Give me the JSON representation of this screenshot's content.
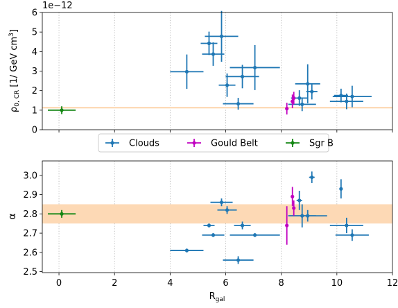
{
  "chart_data": [
    {
      "type": "scatter",
      "offset_text": "1e−12",
      "ylabel_main": "ρ",
      "ylabel_sub": "0, CR",
      "ylabel_unit": " [1/ GeV cm",
      "ylabel_sup": "3",
      "ylabel_close": "]",
      "xlim": [
        -0.6,
        12
      ],
      "ylim": [
        0,
        6
      ],
      "x_ticks": [
        0,
        2,
        4,
        6,
        8,
        10,
        12
      ],
      "y_ticks": [
        0,
        1,
        2,
        3,
        4,
        5,
        6
      ],
      "y_tick_labels": [
        "0",
        "1",
        "2",
        "3",
        "4",
        "5",
        "6"
      ],
      "vlines": [
        0,
        2,
        4,
        6,
        8,
        10
      ],
      "band": {
        "center": 1.13,
        "low": 1.09,
        "high": 1.17,
        "color": "#fdd9b5"
      },
      "series": [
        {
          "name": "Clouds",
          "color": "#1f77b4",
          "points": [
            {
              "x": 4.6,
              "y": 2.97,
              "xerr": 0.6,
              "yerr": 0.88
            },
            {
              "x": 5.4,
              "y": 4.42,
              "xerr": 0.3,
              "yerr": 0.6
            },
            {
              "x": 5.55,
              "y": 3.87,
              "xerr": 0.4,
              "yerr": 0.6
            },
            {
              "x": 5.85,
              "y": 4.78,
              "xerr": 0.6,
              "yerr": 1.3
            },
            {
              "x": 6.05,
              "y": 2.28,
              "xerr": 0.3,
              "yerr": 0.6
            },
            {
              "x": 6.45,
              "y": 1.33,
              "xerr": 0.55,
              "yerr": 0.3
            },
            {
              "x": 6.6,
              "y": 2.72,
              "xerr": 0.6,
              "yerr": 0.6
            },
            {
              "x": 7.05,
              "y": 3.18,
              "xerr": 0.9,
              "yerr": 1.15
            },
            {
              "x": 8.65,
              "y": 1.62,
              "xerr": 0.3,
              "yerr": 0.4
            },
            {
              "x": 8.75,
              "y": 1.3,
              "xerr": 0.5,
              "yerr": 0.35
            },
            {
              "x": 8.95,
              "y": 2.35,
              "xerr": 0.45,
              "yerr": 1.0
            },
            {
              "x": 9.1,
              "y": 1.95,
              "xerr": 0.2,
              "yerr": 0.4
            },
            {
              "x": 10.15,
              "y": 1.75,
              "xerr": 0.25,
              "yerr": 0.35
            },
            {
              "x": 10.35,
              "y": 1.45,
              "xerr": 0.6,
              "yerr": 0.4
            },
            {
              "x": 10.55,
              "y": 1.7,
              "xerr": 0.7,
              "yerr": 0.55
            }
          ]
        },
        {
          "name": "Gould Belt",
          "color": "#c000c0",
          "points": [
            {
              "x": 8.2,
              "y": 1.08,
              "xerr": 0.0,
              "yerr": 0.3
            },
            {
              "x": 8.4,
              "y": 1.45,
              "xerr": 0.0,
              "yerr": 0.35
            },
            {
              "x": 8.45,
              "y": 1.62,
              "xerr": 0.0,
              "yerr": 0.32
            }
          ]
        },
        {
          "name": "Sgr B",
          "color": "#138613",
          "points": [
            {
              "x": 0.1,
              "y": 1.0,
              "xerr": 0.5,
              "yerr": 0.2
            }
          ]
        }
      ]
    },
    {
      "type": "scatter",
      "ylabel": "α",
      "xlabel_main": "R",
      "xlabel_sub": "gal",
      "xlim": [
        -0.6,
        12
      ],
      "ylim": [
        2.495,
        3.075
      ],
      "x_ticks": [
        0,
        2,
        4,
        6,
        8,
        10,
        12
      ],
      "x_tick_labels": [
        "0",
        "2",
        "4",
        "6",
        "8",
        "10",
        "12"
      ],
      "y_ticks": [
        2.5,
        2.6,
        2.7,
        2.8,
        2.9,
        3.0
      ],
      "y_tick_labels": [
        "2.5",
        "2.6",
        "2.7",
        "2.8",
        "2.9",
        "3.0"
      ],
      "vlines": [
        0,
        2,
        4,
        6,
        8,
        10
      ],
      "band": {
        "center": 2.8,
        "low": 2.75,
        "high": 2.85,
        "color": "#fdd9b5"
      },
      "series": [
        {
          "name": "Clouds",
          "color": "#1f77b4",
          "points": [
            {
              "x": 4.6,
              "y": 2.61,
              "xerr": 0.6,
              "yerr": 0.01
            },
            {
              "x": 5.4,
              "y": 2.74,
              "xerr": 0.2,
              "yerr": 0.01
            },
            {
              "x": 5.55,
              "y": 2.69,
              "xerr": 0.4,
              "yerr": 0.01
            },
            {
              "x": 5.85,
              "y": 2.86,
              "xerr": 0.4,
              "yerr": 0.02
            },
            {
              "x": 6.05,
              "y": 2.82,
              "xerr": 0.35,
              "yerr": 0.02
            },
            {
              "x": 6.45,
              "y": 2.56,
              "xerr": 0.55,
              "yerr": 0.02
            },
            {
              "x": 6.6,
              "y": 2.74,
              "xerr": 0.3,
              "yerr": 0.02
            },
            {
              "x": 7.05,
              "y": 2.69,
              "xerr": 0.9,
              "yerr": 0.01
            },
            {
              "x": 8.65,
              "y": 2.87,
              "xerr": 0.1,
              "yerr": 0.05
            },
            {
              "x": 8.75,
              "y": 2.79,
              "xerr": 0.5,
              "yerr": 0.06
            },
            {
              "x": 8.95,
              "y": 2.79,
              "xerr": 0.7,
              "yerr": 0.03
            },
            {
              "x": 9.1,
              "y": 2.99,
              "xerr": 0.1,
              "yerr": 0.03
            },
            {
              "x": 10.15,
              "y": 2.93,
              "xerr": 0.0,
              "yerr": 0.05
            },
            {
              "x": 10.35,
              "y": 2.74,
              "xerr": 0.6,
              "yerr": 0.04
            },
            {
              "x": 10.55,
              "y": 2.69,
              "xerr": 0.6,
              "yerr": 0.03
            }
          ]
        },
        {
          "name": "Gould Belt",
          "color": "#c000c0",
          "points": [
            {
              "x": 8.2,
              "y": 2.74,
              "xerr": 0.0,
              "yerr": 0.1
            },
            {
              "x": 8.4,
              "y": 2.89,
              "xerr": 0.0,
              "yerr": 0.05
            },
            {
              "x": 8.45,
              "y": 2.83,
              "xerr": 0.0,
              "yerr": 0.04
            }
          ]
        },
        {
          "name": "Sgr B",
          "color": "#138613",
          "points": [
            {
              "x": 0.1,
              "y": 2.8,
              "xerr": 0.5,
              "yerr": 0.02
            }
          ]
        }
      ]
    }
  ],
  "legend": [
    {
      "label": "Clouds",
      "color": "#1f77b4"
    },
    {
      "label": "Gould Belt",
      "color": "#c000c0"
    },
    {
      "label": "Sgr B",
      "color": "#138613"
    }
  ]
}
